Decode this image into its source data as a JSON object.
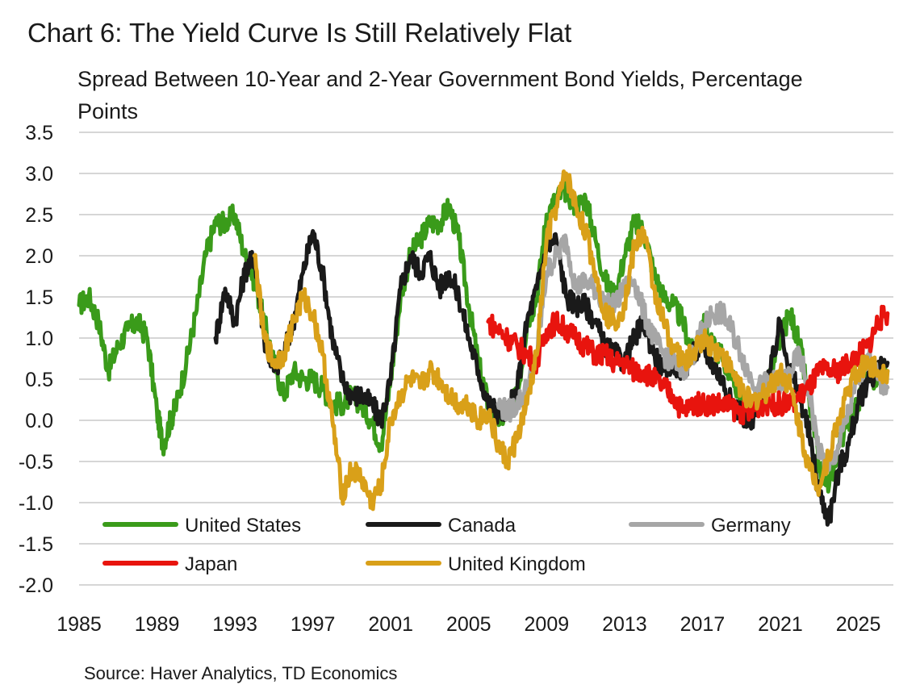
{
  "title": "Chart 6: The Yield Curve Is Still Relatively Flat",
  "subtitle": "Spread Between 10-Year and 2-Year Government Bond Yields, Percentage Points",
  "source": "Source: Haver Analytics, TD Economics",
  "chart_data": {
    "type": "line",
    "title": "Chart 6: The Yield Curve Is Still Relatively Flat",
    "ylabel": "",
    "xlabel": "",
    "ylim": [
      -2.0,
      3.5
    ],
    "xlim": [
      1985,
      2026.8
    ],
    "yticks": [
      3.5,
      3.0,
      2.5,
      2.0,
      1.5,
      1.0,
      0.5,
      0.0,
      -0.5,
      -1.0,
      -1.5,
      -2.0
    ],
    "ytick_labels": [
      "3.5",
      "3.0",
      "2.5",
      "2.0",
      "1.5",
      "1.0",
      "0.5",
      "0.0",
      "-0.5",
      "-1.0",
      "-1.5",
      "-2.0"
    ],
    "xticks": [
      1985,
      1989,
      1993,
      1997,
      2001,
      2005,
      2009,
      2013,
      2017,
      2021,
      2025
    ],
    "xtick_labels": [
      "1985",
      "1989",
      "1993",
      "1997",
      "2001",
      "2005",
      "2009",
      "2013",
      "2017",
      "2021",
      "2025"
    ],
    "grid": "horizontal",
    "legend_position": "bottom-inside",
    "series": [
      {
        "name": "United States",
        "color": "#3a9b1a",
        "x": [
          1985,
          1985.5,
          1986,
          1986.5,
          1987,
          1987.5,
          1988,
          1988.5,
          1989,
          1989.3,
          1989.7,
          1990,
          1990.5,
          1991,
          1991.5,
          1992,
          1992.5,
          1993,
          1993.5,
          1994,
          1994.5,
          1995,
          1995.5,
          1996,
          1996.5,
          1997,
          1997.5,
          1998,
          1998.5,
          1999,
          1999.5,
          2000,
          2000.5,
          2001,
          2001.5,
          2002,
          2002.5,
          2003,
          2003.5,
          2004,
          2004.5,
          2005,
          2005.5,
          2006,
          2006.5,
          2007,
          2007.5,
          2008,
          2008.5,
          2009,
          2009.5,
          2010,
          2010.5,
          2011,
          2011.5,
          2012,
          2012.5,
          2013,
          2013.5,
          2014,
          2014.5,
          2015,
          2015.5,
          2016,
          2016.5,
          2017,
          2017.5,
          2018,
          2018.5,
          2019,
          2019.5,
          2020,
          2020.5,
          2021,
          2021.5,
          2022,
          2022.5,
          2023,
          2023.5,
          2024,
          2024.5,
          2025,
          2025.5,
          2026,
          2026.5
        ],
        "y": [
          1.4,
          1.5,
          1.2,
          0.6,
          0.9,
          1.1,
          1.2,
          1.0,
          0.1,
          -0.3,
          0.0,
          0.2,
          0.7,
          1.3,
          2.0,
          2.4,
          2.4,
          2.5,
          2.0,
          1.7,
          1.2,
          0.7,
          0.3,
          0.6,
          0.5,
          0.5,
          0.4,
          0.2,
          0.2,
          0.3,
          0.2,
          0.0,
          -0.3,
          0.5,
          1.5,
          2.0,
          2.2,
          2.4,
          2.4,
          2.6,
          2.2,
          1.4,
          0.7,
          0.2,
          0.0,
          0.1,
          0.3,
          1.2,
          1.5,
          2.5,
          2.7,
          2.8,
          2.6,
          2.7,
          2.2,
          1.7,
          1.5,
          2.0,
          2.4,
          2.3,
          1.8,
          1.5,
          1.4,
          1.2,
          0.8,
          1.2,
          0.9,
          0.8,
          0.5,
          0.3,
          0.1,
          0.3,
          0.5,
          1.0,
          1.3,
          0.9,
          0.2,
          -0.6,
          -0.8,
          -0.3,
          0.0,
          0.2,
          0.5,
          0.5,
          0.6
        ]
      },
      {
        "name": "Canada",
        "color": "#1a1a1a",
        "x": [
          1992,
          1992.5,
          1993,
          1993.5,
          1994,
          1994.5,
          1995,
          1995.5,
          1996,
          1996.5,
          1997,
          1997.5,
          1998,
          1998.5,
          1999,
          1999.5,
          2000,
          2000.5,
          2001,
          2001.5,
          2002,
          2002.5,
          2003,
          2003.5,
          2004,
          2004.5,
          2005,
          2005.5,
          2006,
          2006.5,
          2007,
          2007.5,
          2008,
          2008.5,
          2009,
          2009.5,
          2010,
          2010.5,
          2011,
          2011.5,
          2012,
          2012.5,
          2013,
          2013.5,
          2014,
          2014.5,
          2015,
          2015.5,
          2016,
          2016.5,
          2017,
          2017.5,
          2018,
          2018.5,
          2019,
          2019.5,
          2020,
          2020.5,
          2021,
          2021.5,
          2022,
          2022.5,
          2023,
          2023.5,
          2024,
          2024.5,
          2025,
          2025.5,
          2026,
          2026.5
        ],
        "y": [
          1.0,
          1.6,
          1.2,
          1.8,
          2.0,
          1.0,
          0.6,
          0.8,
          1.2,
          1.8,
          2.3,
          1.8,
          1.0,
          0.5,
          0.3,
          0.3,
          0.2,
          0.0,
          0.5,
          1.6,
          2.0,
          1.8,
          2.0,
          1.6,
          1.8,
          1.5,
          1.0,
          0.6,
          0.2,
          0.1,
          0.1,
          0.4,
          1.2,
          1.6,
          2.1,
          2.2,
          1.5,
          1.4,
          1.4,
          1.2,
          0.9,
          0.8,
          0.7,
          1.0,
          1.2,
          0.8,
          0.6,
          0.7,
          0.6,
          0.8,
          0.9,
          0.7,
          0.5,
          0.2,
          0.1,
          -0.1,
          0.3,
          0.6,
          1.2,
          0.6,
          0.3,
          -0.2,
          -0.9,
          -1.2,
          -0.6,
          -0.3,
          0.2,
          0.5,
          0.6,
          0.7
        ]
      },
      {
        "name": "Germany",
        "color": "#a6a6a6",
        "x": [
          2006.5,
          2007,
          2007.5,
          2008,
          2008.5,
          2009,
          2009.5,
          2010,
          2010.5,
          2011,
          2011.5,
          2012,
          2012.5,
          2013,
          2013.5,
          2014,
          2014.5,
          2015,
          2015.5,
          2016,
          2016.5,
          2017,
          2017.5,
          2018,
          2018.5,
          2019,
          2019.5,
          2020,
          2020.5,
          2021,
          2021.5,
          2022,
          2022.5,
          2023,
          2023.5,
          2024,
          2024.5,
          2025,
          2025.5,
          2026,
          2026.5
        ],
        "y": [
          0.2,
          0.1,
          0.2,
          0.4,
          0.8,
          1.8,
          2.0,
          2.2,
          1.6,
          1.7,
          1.6,
          1.4,
          1.4,
          1.6,
          1.7,
          1.3,
          1.0,
          0.8,
          0.7,
          0.6,
          0.8,
          1.1,
          1.3,
          1.3,
          1.1,
          0.8,
          0.5,
          0.4,
          0.5,
          0.4,
          0.6,
          0.8,
          0.3,
          -0.4,
          -0.6,
          -0.3,
          0.1,
          0.5,
          0.8,
          0.5,
          0.4
        ]
      },
      {
        "name": "Japan",
        "color": "#e8140e",
        "x": [
          2006,
          2006.5,
          2007,
          2007.5,
          2008,
          2008.5,
          2009,
          2009.5,
          2010,
          2010.5,
          2011,
          2011.5,
          2012,
          2012.5,
          2013,
          2013.5,
          2014,
          2014.5,
          2015,
          2015.5,
          2016,
          2016.5,
          2017,
          2017.5,
          2018,
          2018.5,
          2019,
          2019.5,
          2020,
          2020.5,
          2021,
          2021.5,
          2022,
          2022.5,
          2023,
          2023.5,
          2024,
          2024.5,
          2025,
          2025.5,
          2026,
          2026.5
        ],
        "y": [
          1.2,
          1.1,
          1.0,
          0.9,
          0.8,
          0.7,
          1.1,
          1.2,
          1.1,
          1.0,
          0.9,
          0.8,
          0.8,
          0.7,
          0.7,
          0.6,
          0.6,
          0.5,
          0.4,
          0.3,
          0.1,
          0.2,
          0.2,
          0.2,
          0.2,
          0.15,
          0.1,
          0.1,
          0.2,
          0.2,
          0.2,
          0.2,
          0.3,
          0.4,
          0.6,
          0.6,
          0.6,
          0.7,
          0.8,
          0.9,
          1.2,
          1.3
        ]
      },
      {
        "name": "United Kingdom",
        "color": "#d9a019",
        "x": [
          1994,
          1994.5,
          1995,
          1995.5,
          1996,
          1996.5,
          1997,
          1997.5,
          1998,
          1998.5,
          1999,
          1999.5,
          2000,
          2000.5,
          2001,
          2001.5,
          2002,
          2002.5,
          2003,
          2003.5,
          2004,
          2004.5,
          2005,
          2005.5,
          2006,
          2006.5,
          2007,
          2007.5,
          2008,
          2008.5,
          2009,
          2009.5,
          2010,
          2010.5,
          2011,
          2011.5,
          2012,
          2012.5,
          2013,
          2013.5,
          2014,
          2014.5,
          2015,
          2015.5,
          2016,
          2016.5,
          2017,
          2017.5,
          2018,
          2018.5,
          2019,
          2019.5,
          2020,
          2020.5,
          2021,
          2021.5,
          2022,
          2022.5,
          2023,
          2023.5,
          2024,
          2024.5,
          2025,
          2025.5,
          2026,
          2026.5
        ],
        "y": [
          2.0,
          1.0,
          0.7,
          0.8,
          1.2,
          1.5,
          1.3,
          0.8,
          0.0,
          -0.9,
          -0.6,
          -0.7,
          -1.0,
          -0.8,
          0.0,
          0.3,
          0.5,
          0.4,
          0.6,
          0.5,
          0.3,
          0.2,
          0.2,
          0.0,
          0.1,
          -0.3,
          -0.5,
          -0.2,
          0.2,
          0.8,
          2.2,
          2.6,
          3.0,
          2.6,
          2.3,
          1.8,
          1.3,
          1.2,
          1.4,
          2.1,
          2.3,
          1.6,
          1.2,
          0.9,
          0.7,
          0.8,
          1.0,
          0.9,
          0.8,
          0.6,
          0.4,
          0.2,
          0.3,
          0.4,
          0.6,
          0.4,
          -0.1,
          -0.6,
          -0.8,
          -0.4,
          0.0,
          0.4,
          0.6,
          0.7,
          0.6,
          0.6
        ]
      }
    ]
  }
}
